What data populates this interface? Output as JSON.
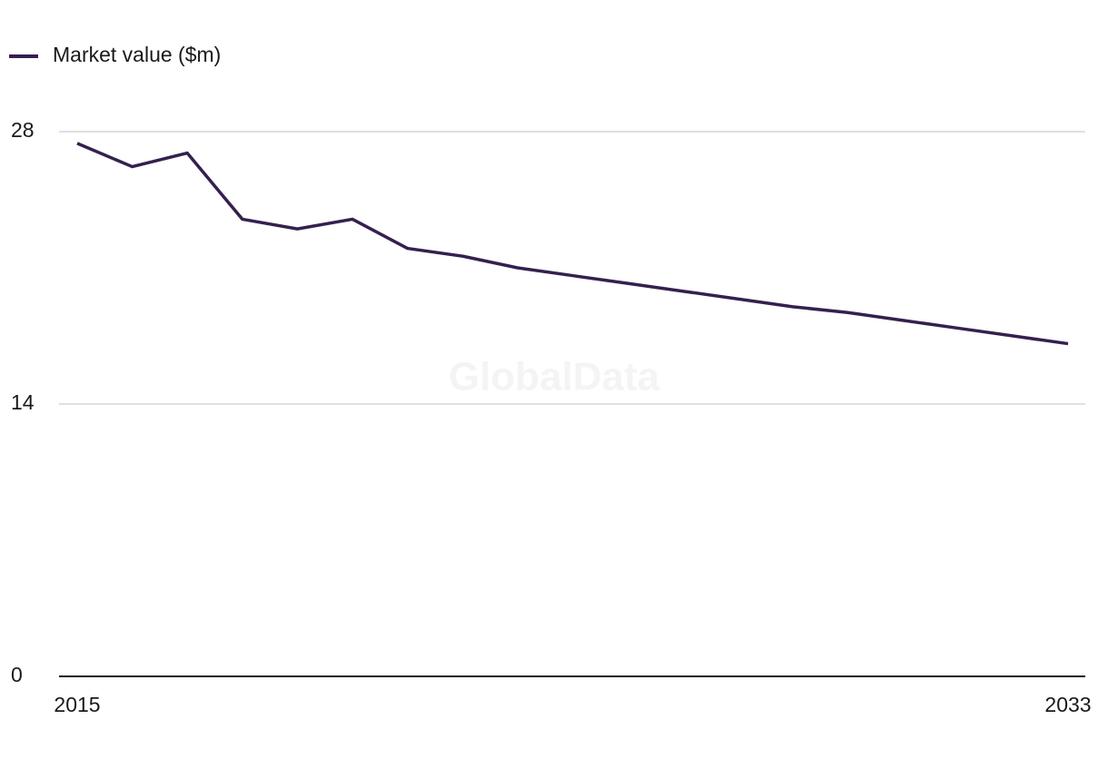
{
  "chart_data": {
    "type": "line",
    "watermark": "GlobalData",
    "categories": [
      "2015",
      null,
      null,
      null,
      null,
      null,
      null,
      null,
      null,
      null,
      null,
      null,
      null,
      null,
      null,
      null,
      null,
      null,
      "2033"
    ],
    "series": [
      {
        "name": "Market value ($m)",
        "color": "#35204f",
        "values": [
          27.4,
          26.2,
          26.9,
          23.5,
          23.0,
          23.5,
          22.0,
          21.6,
          21.0,
          20.6,
          20.2,
          19.8,
          19.4,
          19.0,
          18.7,
          18.3,
          17.9,
          17.5,
          17.1
        ]
      }
    ],
    "ylim": [
      0,
      28
    ],
    "yticks": [
      0,
      14,
      28
    ],
    "grid": true
  }
}
